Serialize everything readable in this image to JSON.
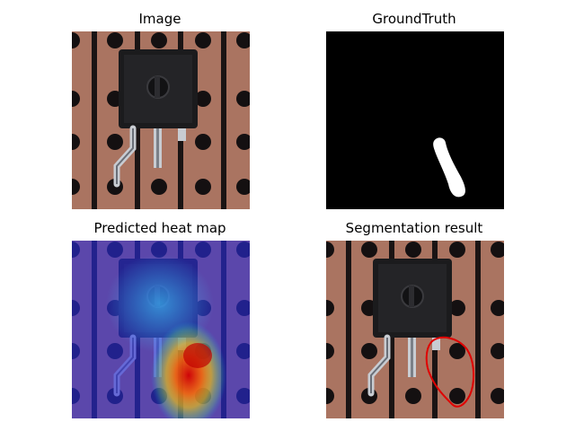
{
  "panels": {
    "image": {
      "title": "Image"
    },
    "ground_truth": {
      "title": "GroundTruth"
    },
    "heat_map": {
      "title": "Predicted heat map"
    },
    "segmentation": {
      "title": "Segmentation result"
    }
  },
  "colors": {
    "board": "#a8705e",
    "track": "#1a1414",
    "hole": "#141011",
    "component": "#1b1b1d",
    "leg": "#c8ccd2",
    "contour": "#e00000",
    "mask": "#ffffff",
    "background": "#000000"
  }
}
